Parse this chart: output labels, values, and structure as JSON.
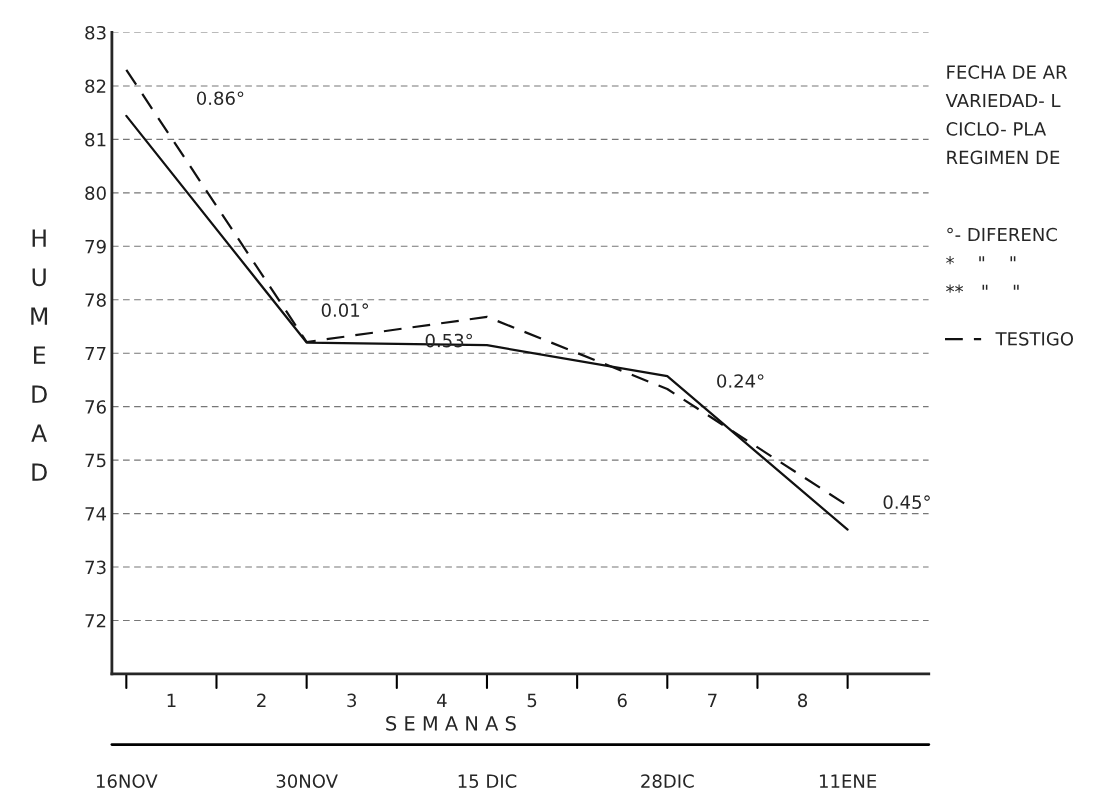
{
  "chart_data": {
    "type": "line",
    "ylabel": "HUMEDAD",
    "categories": [
      "16NOV",
      "30NOV",
      "15 DIC",
      "28DIC",
      "11ENE"
    ],
    "series": [
      {
        "color": "#111111",
        "line_style": "solid",
        "values": [
          81.44,
          77.2,
          77.15,
          76.57,
          73.7
        ]
      },
      {
        "name": "TESTIGO",
        "color": "#111111",
        "line_style": "dashed",
        "values": [
          82.3,
          77.21,
          77.68,
          76.33,
          74.15
        ]
      }
    ],
    "ylim": [
      71,
      83
    ],
    "yticks": [
      72,
      73,
      74,
      75,
      76,
      77,
      78,
      79,
      80,
      81,
      82,
      83
    ],
    "grid": "y",
    "legend": "right",
    "marker": "none",
    "annotations": [
      "0.86°",
      "0.01°",
      "0.53°",
      "0.24°",
      "0.45°",
      "1",
      "2",
      "3",
      "4",
      "5",
      "6",
      "7",
      "8",
      "S E M A N A S",
      "FECHA DE AR",
      "VARIEDAD- L",
      "CICLO- PLA",
      "REGIMEN DE",
      "°- DIFERENC",
      "*    \"    \"",
      "**   \"    \""
    ]
  }
}
